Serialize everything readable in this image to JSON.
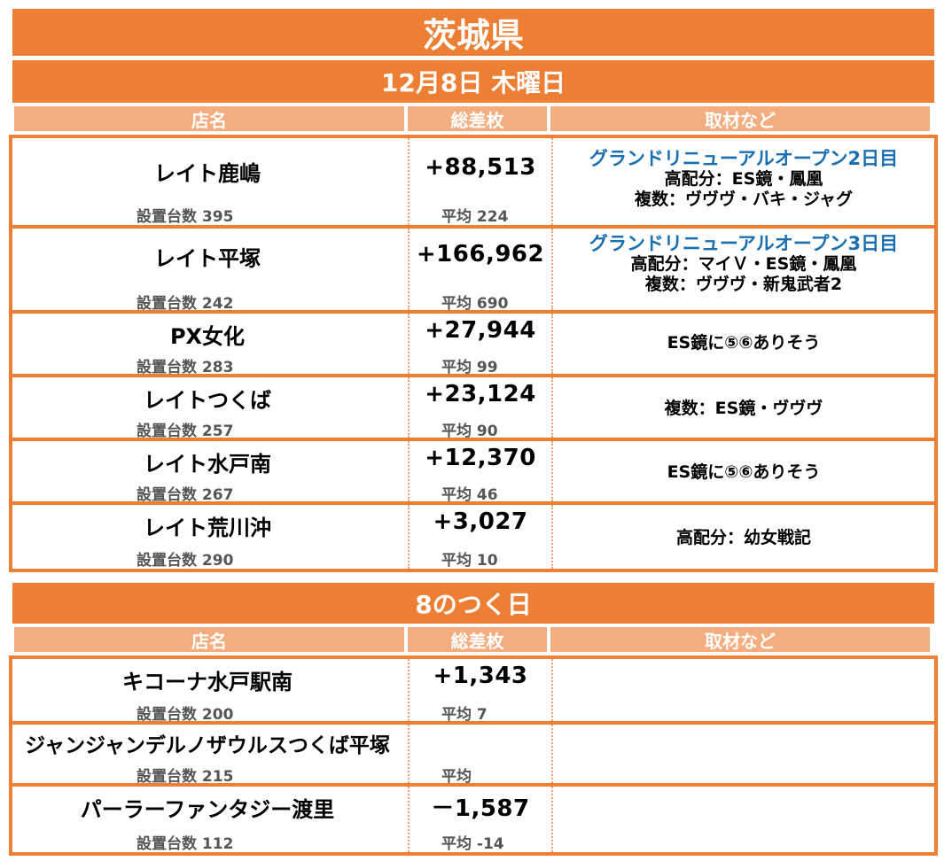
{
  "title": "茨城県",
  "section1": {
    "date_label": "12月8日 木曜日",
    "headers": [
      "店名",
      "総差枚",
      "取材など"
    ],
    "rows": [
      {
        "name": "レイト鹿嶋",
        "units": "設置台数 395",
        "total": "+88,513",
        "avg": "平均 224",
        "note_head": "グランドリニューアルオープン2日目",
        "note_lines": [
          "高配分：ES鏡・鳳凰",
          "複数：ヴヴヴ・バキ・ジャグ"
        ]
      },
      {
        "name": "レイト平塚",
        "units": "設置台数 242",
        "total": "+166,962",
        "avg": "平均 690",
        "note_head": "グランドリニューアルオープン3日目",
        "note_lines": [
          "高配分：マイＶ・ES鏡・鳳凰",
          "複数：ヴヴヴ・新鬼武者2"
        ]
      },
      {
        "name": "PX女化",
        "units": "設置台数 283",
        "total": "+27,944",
        "avg": "平均 99",
        "note_head": "",
        "note_lines": [
          "ES鏡に⑤⑥ありそう"
        ]
      },
      {
        "name": "レイトつくば",
        "units": "設置台数 257",
        "total": "+23,124",
        "avg": "平均 90",
        "note_head": "",
        "note_lines": [
          "複数：ES鏡・ヴヴヴ"
        ]
      },
      {
        "name": "レイト水戸南",
        "units": "設置台数 267",
        "total": "+12,370",
        "avg": "平均 46",
        "note_head": "",
        "note_lines": [
          "ES鏡に⑤⑥ありそう"
        ]
      },
      {
        "name": "レイト荒川沖",
        "units": "設置台数 290",
        "total": "+3,027",
        "avg": "平均 10",
        "note_head": "",
        "note_lines": [
          "高配分：幼女戦記"
        ]
      }
    ]
  },
  "section2": {
    "label": "8のつく日",
    "headers": [
      "店名",
      "総差枚",
      "取材など"
    ],
    "rows": [
      {
        "name": "キコーナ水戸駅南",
        "units": "設置台数 200",
        "total": "+1,343",
        "avg": "平均 7"
      },
      {
        "name": "ジャンジャンデルノザウルスつくば平塚",
        "units": "設置台数 215",
        "total": "",
        "avg": "平均"
      },
      {
        "name": "パーラーファンタジー渡里",
        "units": "設置台数 112",
        "total": "－1,587",
        "avg": "平均 -14"
      }
    ]
  },
  "colors": {
    "orange": "#ec7f34",
    "header": "#f4ad7e",
    "highlight": "#1a6fb0"
  }
}
